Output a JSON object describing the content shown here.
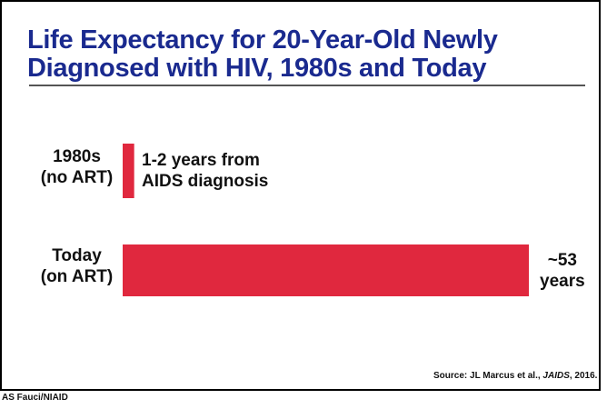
{
  "slide": {
    "title_line1": "Life Expectancy for 20-Year-Old Newly",
    "title_line2": "Diagnosed with HIV, 1980s and Today",
    "source_prefix": "Source: JL Marcus et al., ",
    "source_journal": "JAIDS",
    "source_suffix": ", 2016.",
    "credit": "AS Fauci/NIAID",
    "bar_color": "#e0283e",
    "title_color": "#1a2a8f"
  },
  "chart_data": {
    "type": "bar",
    "orientation": "horizontal",
    "title": "Life Expectancy for 20-Year-Old Newly Diagnosed with HIV, 1980s and Today",
    "categories": [
      {
        "line1": "1980s",
        "line2": "(no ART)"
      },
      {
        "line1": "Today",
        "line2": "(on ART)"
      }
    ],
    "values": [
      1.5,
      53
    ],
    "value_labels": [
      {
        "line1": "1-2 years from",
        "line2": "AIDS diagnosis"
      },
      {
        "line1": "~53",
        "line2": "years"
      }
    ],
    "xlim": [
      0,
      53
    ],
    "grid": false,
    "legend": "none"
  }
}
